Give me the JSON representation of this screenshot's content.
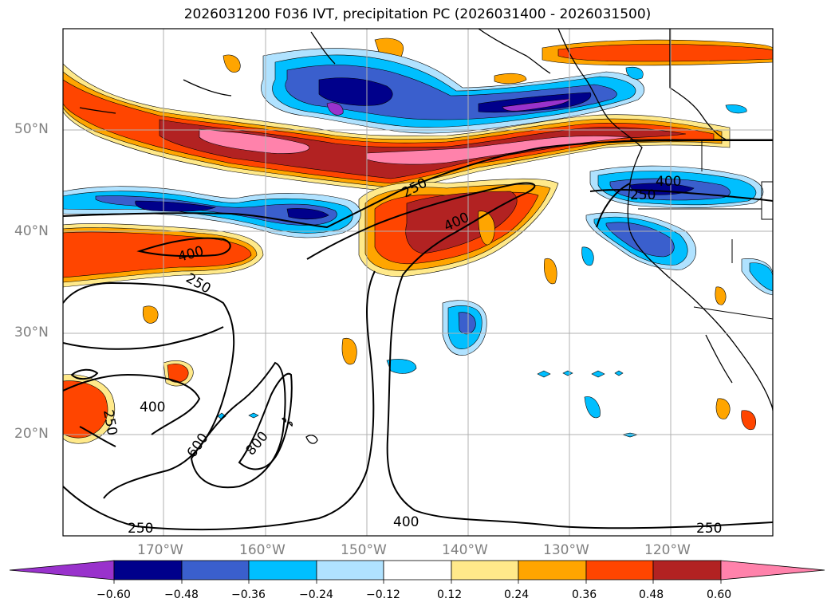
{
  "title": "2026031200 F036 IVT, precipitation PC (2026031400 - 2026031500)",
  "lat_labels": [
    "50°N",
    "40°N",
    "30°N",
    "20°N"
  ],
  "lon_labels": [
    "170°W",
    "160°W",
    "150°W",
    "140°W",
    "130°W",
    "120°W"
  ],
  "contour_labels": [
    "250",
    "400",
    "250",
    "400",
    "250",
    "400",
    "400",
    "250",
    "400",
    "600",
    "800",
    "250",
    "400",
    "250"
  ],
  "colorbar": {
    "ticks": [
      "−0.60",
      "−0.48",
      "−0.36",
      "−0.24",
      "−0.12",
      "0.12",
      "0.24",
      "0.36",
      "0.48",
      "0.60"
    ],
    "colors": [
      "#9932cc",
      "#00008b",
      "#3a5fcd",
      "#00bfff",
      "#b0e2ff",
      "#ffffff",
      "#ffe98a",
      "#ffa500",
      "#ff4500",
      "#b22222",
      "#ff82ab"
    ]
  }
}
